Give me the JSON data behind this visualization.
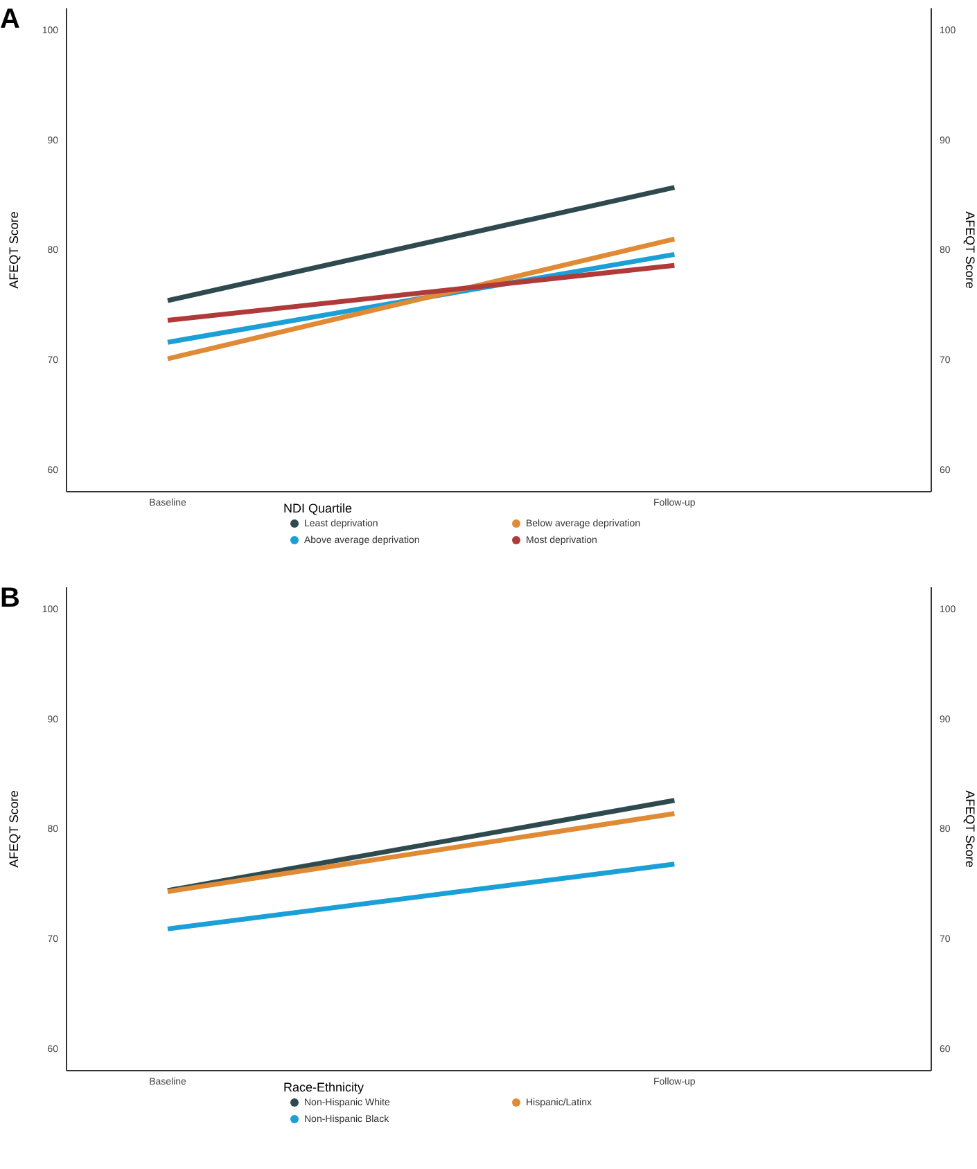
{
  "chart_data": [
    {
      "type": "line",
      "title": "A",
      "categories": [
        "Baseline",
        "Follow-up"
      ],
      "ylabel": "AFEQT Score",
      "y2label": "AFEQT Score",
      "ylim": [
        58,
        102
      ],
      "yticks": [
        60,
        70,
        80,
        90,
        100
      ],
      "y2lim": [
        58,
        102
      ],
      "y2ticks": [
        60,
        70,
        80,
        90,
        100
      ],
      "legend": "bottom",
      "legend_title": "NDI Quartile",
      "marker": "none",
      "line_style": "solid",
      "grid": false,
      "series": [
        {
          "name": "Least deprivation",
          "color": "#2f4a4f",
          "values": [
            75.4,
            85.7
          ]
        },
        {
          "name": "Above average deprivation",
          "color": "#1a9fd6",
          "values": [
            71.6,
            79.6
          ]
        },
        {
          "name": "Below average deprivation",
          "color": "#e08a35",
          "values": [
            70.1,
            81.0
          ]
        },
        {
          "name": "Most deprivation",
          "color": "#b03a3a",
          "values": [
            73.6,
            78.6
          ]
        }
      ]
    },
    {
      "type": "line",
      "title": "B",
      "categories": [
        "Baseline",
        "Follow-up"
      ],
      "ylabel": "AFEQT Score",
      "y2label": "AFEQT Score",
      "ylim": [
        58,
        102
      ],
      "yticks": [
        60,
        70,
        80,
        90,
        100
      ],
      "y2lim": [
        58,
        102
      ],
      "y2ticks": [
        60,
        70,
        80,
        90,
        100
      ],
      "legend": "bottom",
      "legend_title": "Race-Ethnicity",
      "marker": "none",
      "line_style": "solid",
      "grid": false,
      "series": [
        {
          "name": "Non-Hispanic White",
          "color": "#2f4a4f",
          "values": [
            74.4,
            82.6
          ]
        },
        {
          "name": "Non-Hispanic Black",
          "color": "#1a9fd6",
          "values": [
            70.9,
            76.8
          ]
        },
        {
          "name": "Hispanic/Latinx",
          "color": "#e08a35",
          "values": [
            74.3,
            81.4
          ]
        }
      ]
    }
  ]
}
